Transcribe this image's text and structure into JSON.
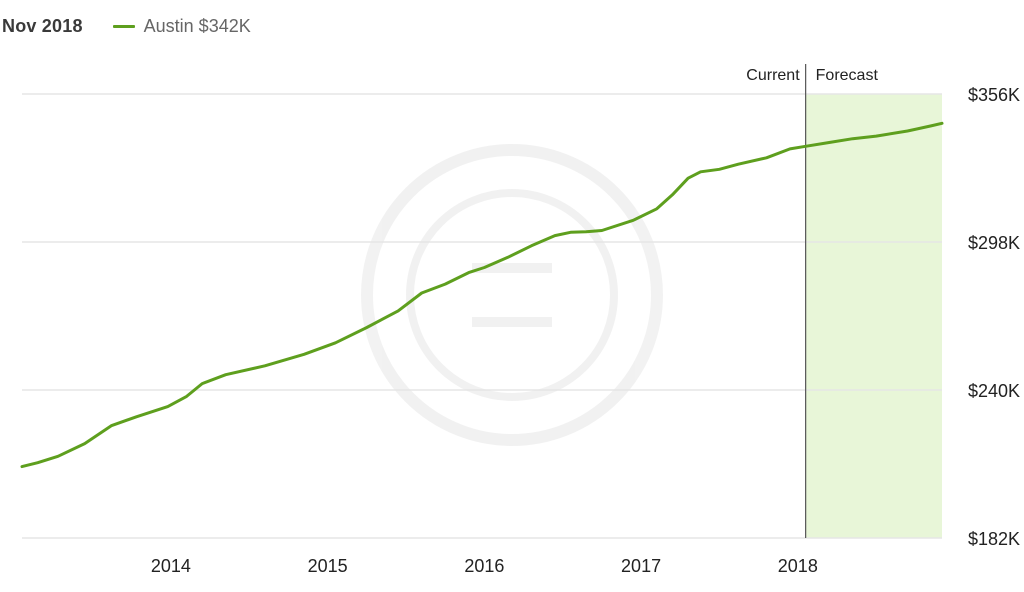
{
  "header": {
    "date": "Nov 2018",
    "legend_label": "Austin $342K"
  },
  "colors": {
    "line": "#5e9f1e",
    "forecast_fill": "#e8f6d8",
    "grid": "#e6e6e6",
    "divider": "#555555",
    "axis_text": "#222222"
  },
  "chart_data": {
    "type": "line",
    "title": "",
    "xlabel": "",
    "ylabel": "",
    "ylim": [
      182,
      356
    ],
    "y_ticks": [
      {
        "value": 356,
        "label": "$356K"
      },
      {
        "value": 298,
        "label": "$298K"
      },
      {
        "value": 240,
        "label": "$240K"
      },
      {
        "value": 182,
        "label": "$182K"
      }
    ],
    "x_range": [
      2013.05,
      2018.92
    ],
    "x_ticks": [
      {
        "value": 2014,
        "label": "2014"
      },
      {
        "value": 2015,
        "label": "2015"
      },
      {
        "value": 2016,
        "label": "2016"
      },
      {
        "value": 2017,
        "label": "2017"
      },
      {
        "value": 2018,
        "label": "2018"
      }
    ],
    "current_x": 2018.05,
    "current_label": "Current",
    "forecast_label": "Forecast",
    "grid": true,
    "series": [
      {
        "name": "Austin",
        "points": [
          [
            2013.05,
            210.0
          ],
          [
            2013.15,
            211.5
          ],
          [
            2013.28,
            214.0
          ],
          [
            2013.45,
            219.0
          ],
          [
            2013.62,
            226.0
          ],
          [
            2013.78,
            229.5
          ],
          [
            2013.98,
            233.5
          ],
          [
            2014.1,
            237.5
          ],
          [
            2014.2,
            242.5
          ],
          [
            2014.35,
            246.0
          ],
          [
            2014.6,
            249.5
          ],
          [
            2014.85,
            254.0
          ],
          [
            2015.05,
            258.5
          ],
          [
            2015.25,
            264.5
          ],
          [
            2015.45,
            271.0
          ],
          [
            2015.6,
            278.0
          ],
          [
            2015.75,
            281.5
          ],
          [
            2015.9,
            286.0
          ],
          [
            2016.0,
            288.0
          ],
          [
            2016.15,
            292.0
          ],
          [
            2016.3,
            296.5
          ],
          [
            2016.45,
            300.5
          ],
          [
            2016.55,
            301.8
          ],
          [
            2016.65,
            302.0
          ],
          [
            2016.75,
            302.5
          ],
          [
            2016.95,
            306.5
          ],
          [
            2017.1,
            311.0
          ],
          [
            2017.2,
            316.5
          ],
          [
            2017.3,
            323.0
          ],
          [
            2017.38,
            325.5
          ],
          [
            2017.5,
            326.5
          ],
          [
            2017.62,
            328.5
          ],
          [
            2017.8,
            331.0
          ],
          [
            2017.95,
            334.5
          ],
          [
            2018.05,
            335.5
          ],
          [
            2018.2,
            337.0
          ],
          [
            2018.35,
            338.5
          ],
          [
            2018.5,
            339.5
          ],
          [
            2018.7,
            341.5
          ],
          [
            2018.85,
            343.5
          ],
          [
            2018.92,
            344.5
          ]
        ]
      }
    ]
  }
}
